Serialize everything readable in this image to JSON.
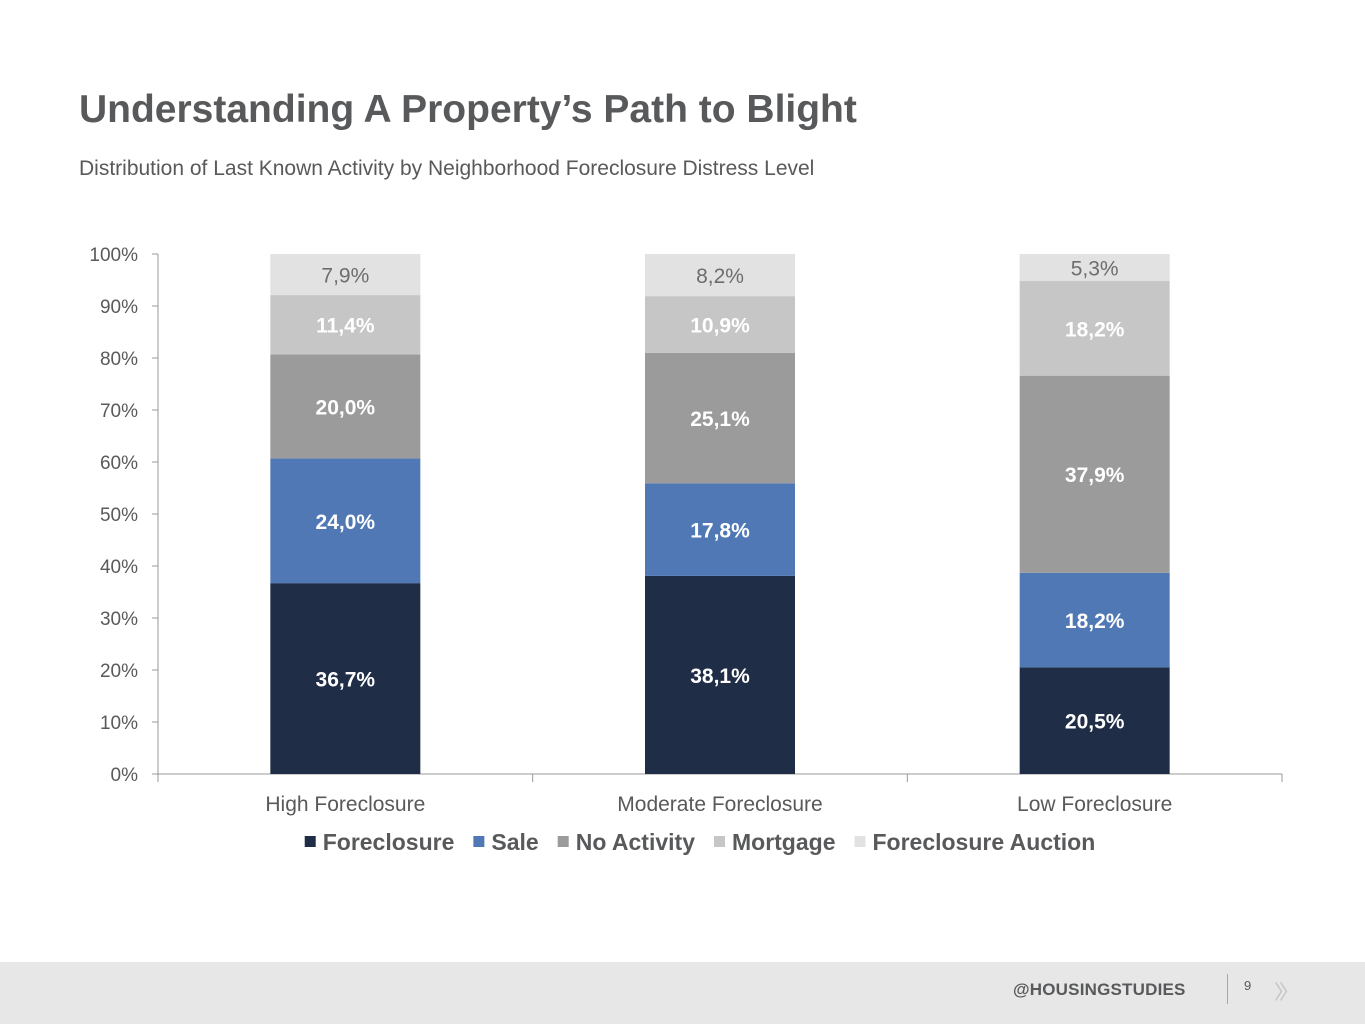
{
  "page": {
    "title": "Understanding A Property’s Path to Blight",
    "subtitle": "Distribution of Last Known Activity by Neighborhood Foreclosure Distress Level"
  },
  "chart_data": {
    "type": "bar",
    "stacked": true,
    "categories": [
      "High Foreclosure",
      "Moderate Foreclosure",
      "Low Foreclosure"
    ],
    "series": [
      {
        "name": "Foreclosure",
        "color": "#1f2d47",
        "label_color": "#ffffff",
        "values": [
          36.7,
          38.1,
          20.5
        ],
        "labels": [
          "36,7%",
          "38,1%",
          "20,5%"
        ]
      },
      {
        "name": "Sale",
        "color": "#5078b4",
        "label_color": "#ffffff",
        "values": [
          24.0,
          17.8,
          18.2
        ],
        "labels": [
          "24,0%",
          "17,8%",
          "18,2%"
        ]
      },
      {
        "name": "No Activity",
        "color": "#9b9b9b",
        "label_color": "#ffffff",
        "values": [
          20.0,
          25.1,
          37.9
        ],
        "labels": [
          "20,0%",
          "25,1%",
          "37,9%"
        ]
      },
      {
        "name": "Mortgage",
        "color": "#c6c6c6",
        "label_color": "#ffffff",
        "values": [
          11.4,
          10.9,
          18.2
        ],
        "labels": [
          "11,4%",
          "10,9%",
          "18,2%"
        ]
      },
      {
        "name": "Foreclosure Auction",
        "color": "#e2e2e2",
        "label_color": "#6d6d6d",
        "values": [
          7.9,
          8.2,
          5.3
        ],
        "labels": [
          "7,9%",
          "8,2%",
          "5,3%"
        ]
      }
    ],
    "ylim": [
      0,
      100
    ],
    "yticks": [
      "0%",
      "10%",
      "20%",
      "30%",
      "40%",
      "50%",
      "60%",
      "70%",
      "80%",
      "90%",
      "100%"
    ],
    "grid": false,
    "legend": "bottom",
    "axis_color": "#999999",
    "tick_label_color": "#58595b"
  },
  "footer": {
    "handle": "@HOUSINGSTUDIES",
    "page_number": "9",
    "next_icon": "double-chevron-right-icon"
  }
}
